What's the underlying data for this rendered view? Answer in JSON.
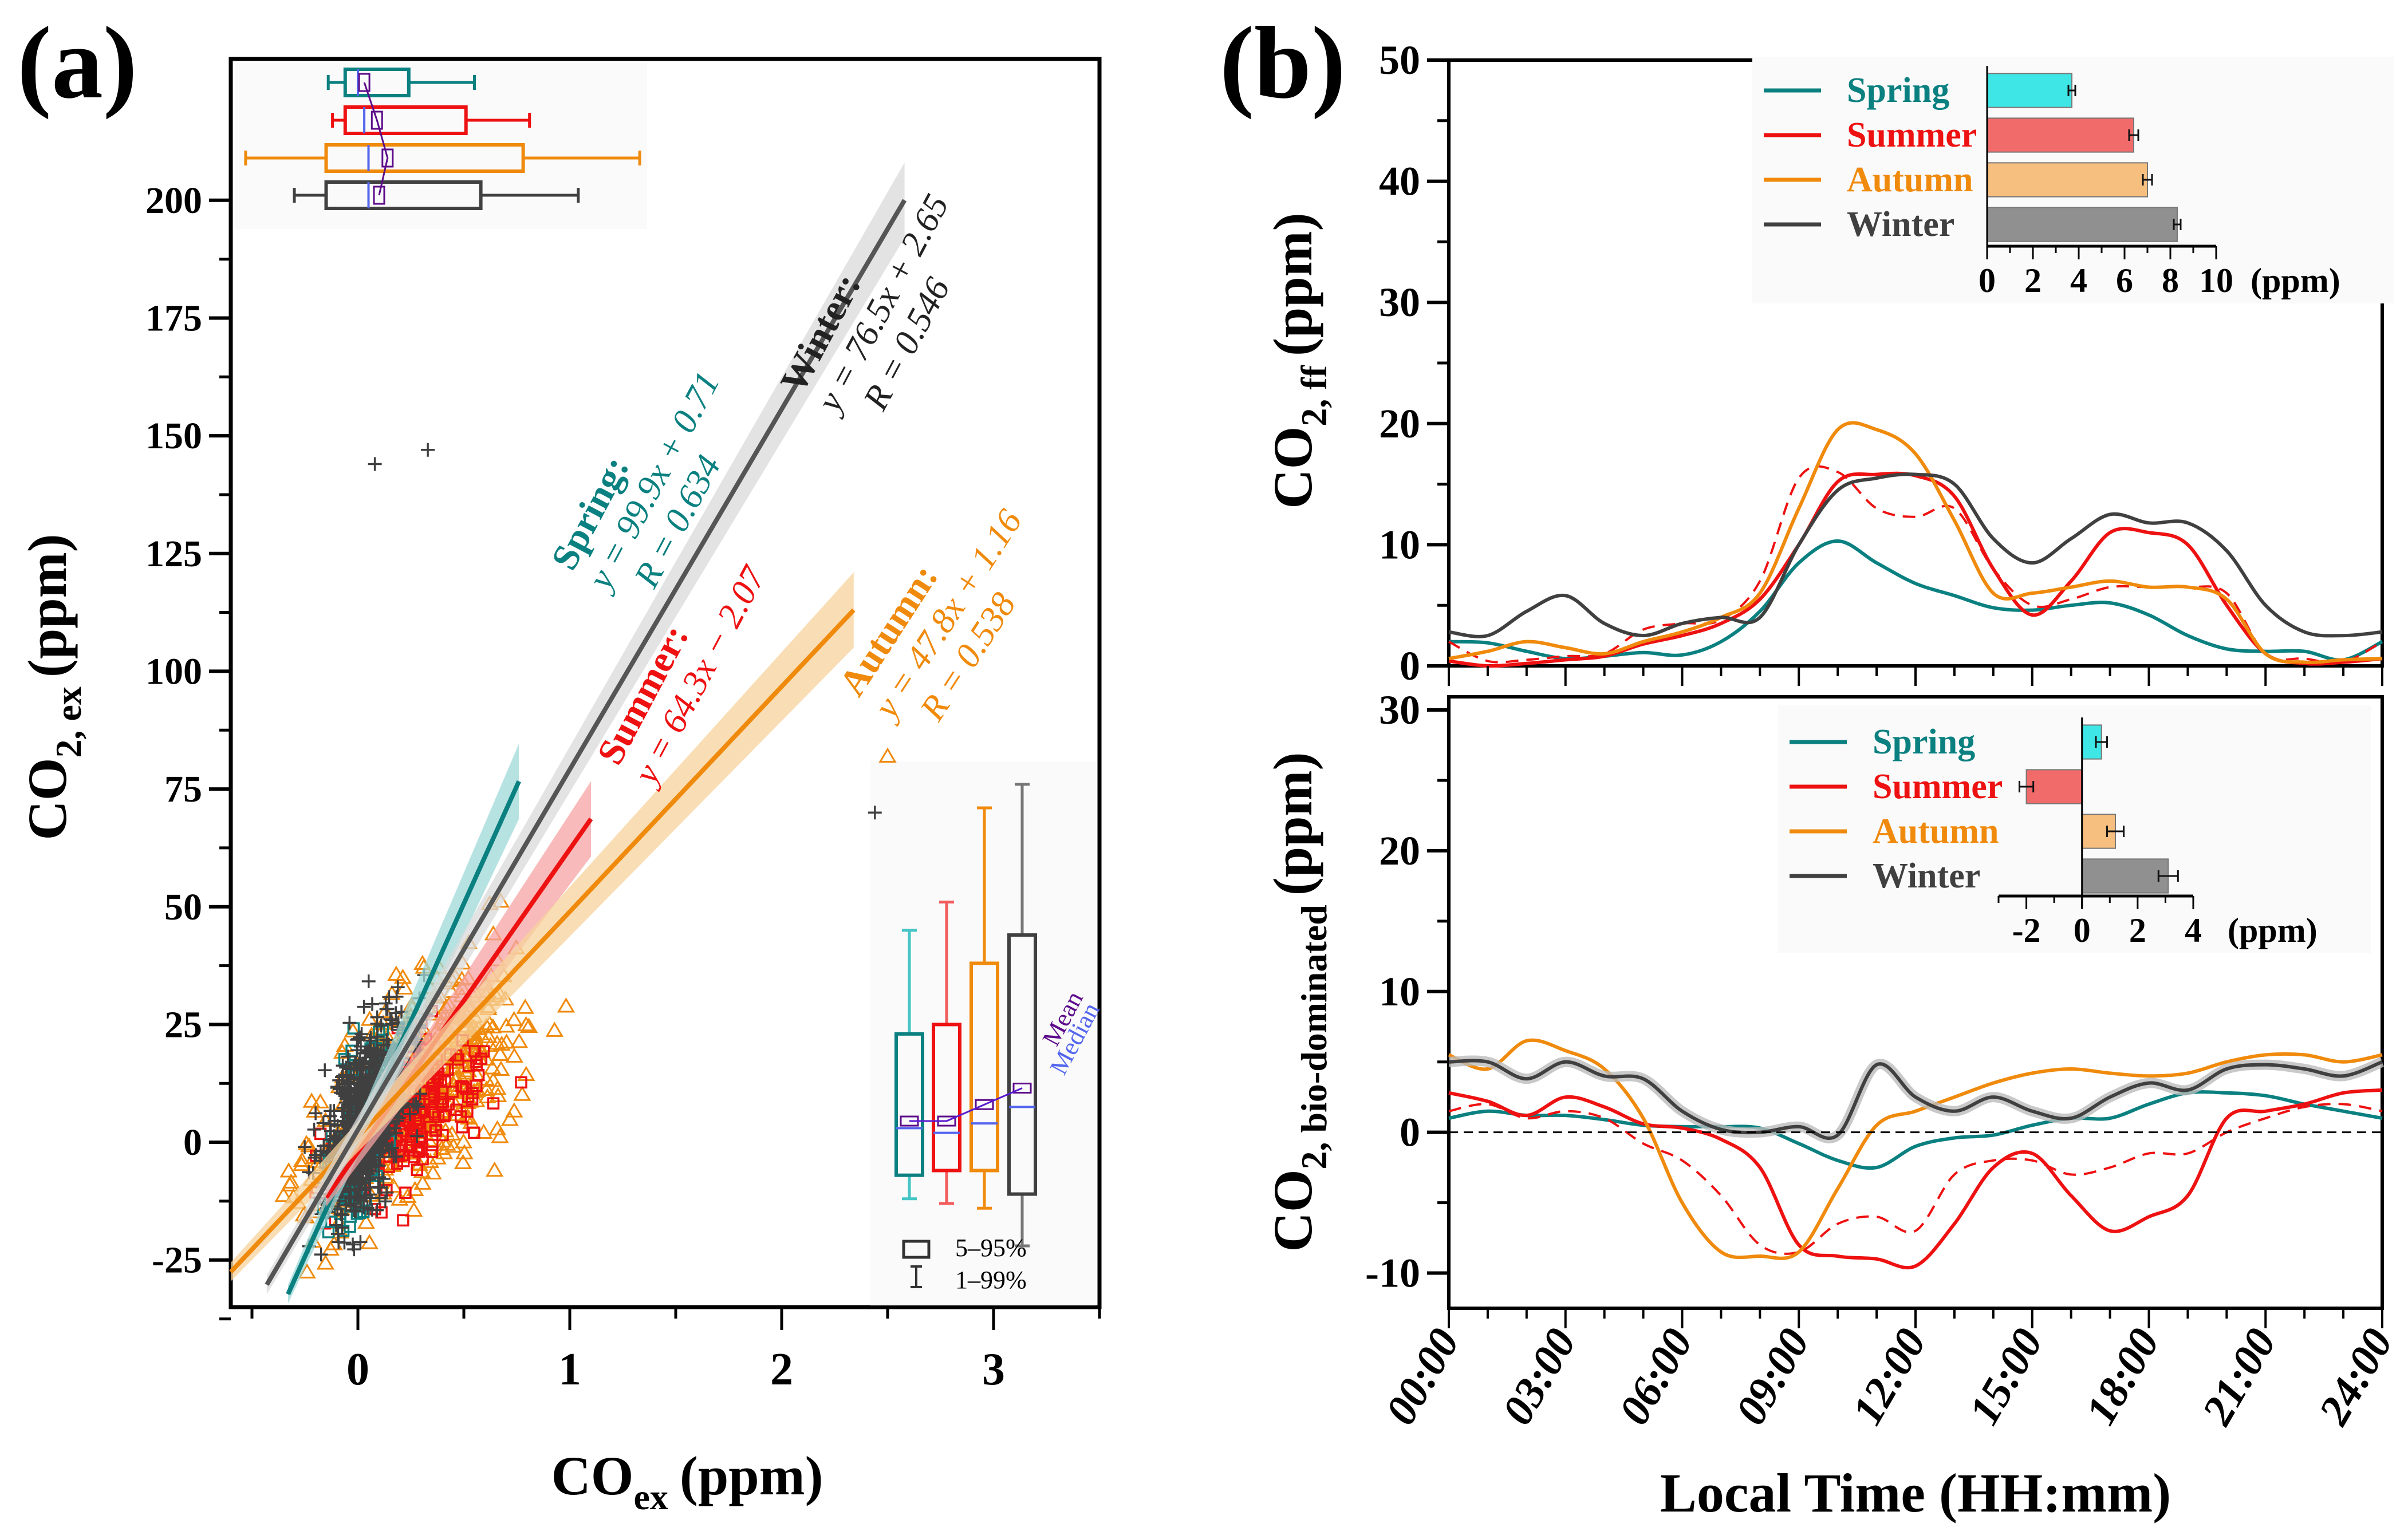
{
  "panel_labels": {
    "a": "(a)",
    "b": "(b)"
  },
  "colors": {
    "Spring": "#0b8080",
    "Summer": "#ee1111",
    "Autumn": "#f08a0c",
    "Winter": "#404040",
    "mean": "#5c0a8a",
    "median": "#5566ee",
    "spring_bar": "#3ee6e6",
    "summer_bar": "#f26b6b",
    "autumn_bar": "#f6bf7f",
    "winter_bar": "#909090"
  },
  "chart_data": [
    {
      "id": "a",
      "type": "scatter",
      "title": "",
      "xlabel": "CO",
      "xlabel_sub": "ex",
      "xlabel_unit": "(ppm)",
      "ylabel": "CO",
      "ylabel_sub": "2, ex",
      "ylabel_unit": "(ppm)",
      "xlim": [
        -0.6,
        3.5
      ],
      "ylim": [
        -35,
        230
      ],
      "xticks": [
        0,
        1,
        2,
        3
      ],
      "xtick_labels": [
        "0",
        "1",
        "2",
        "3"
      ],
      "yticks": [
        -25,
        0,
        25,
        50,
        75,
        100,
        125,
        150,
        175,
        200
      ],
      "ytick_labels": [
        "-25",
        "0",
        "25",
        "50",
        "75",
        "100",
        "125",
        "150",
        "175",
        "200"
      ],
      "markers": {
        "Spring": "square",
        "Summer": "square",
        "Autumn": "triangle",
        "Winter": "plus"
      },
      "regressions": [
        {
          "season": "Spring",
          "title": "Spring:",
          "equation": "y = 99.9x + 0.71",
          "r_text": "R = 0.634",
          "slope": 99.9,
          "intercept": 0.71,
          "x_range": [
            -0.33,
            0.76
          ]
        },
        {
          "season": "Summer",
          "title": "Summer:",
          "equation": "y = 64.3x − 2.07",
          "r_text": "",
          "slope": 64.3,
          "intercept": -2.07,
          "x_range": [
            -0.15,
            1.1
          ]
        },
        {
          "season": "Autumn",
          "title": "Autumn:",
          "equation": "y = 47.8x + 1.16",
          "r_text": "R = 0.538",
          "slope": 47.8,
          "intercept": 1.16,
          "x_range": [
            -0.6,
            2.34
          ]
        },
        {
          "season": "Winter",
          "title": "Winter:",
          "equation": "y = 76.5x + 2.65",
          "r_text": "R = 0.546",
          "slope": 76.5,
          "intercept": 2.65,
          "x_range": [
            -0.43,
            2.58
          ]
        }
      ],
      "co_boxplot": {
        "description": "horizontal boxplots of CO_ex per season (top inset)",
        "order": [
          "Spring",
          "Summer",
          "Autumn",
          "Winter"
        ],
        "stats": [
          {
            "season": "Spring",
            "p1": -0.14,
            "q1": -0.06,
            "median": 0.0,
            "mean": 0.03,
            "q3": 0.24,
            "p99": 0.55
          },
          {
            "season": "Summer",
            "p1": -0.12,
            "q1": -0.06,
            "median": 0.03,
            "mean": 0.09,
            "q3": 0.51,
            "p99": 0.81
          },
          {
            "season": "Autumn",
            "p1": -0.53,
            "q1": -0.15,
            "median": 0.05,
            "mean": 0.14,
            "q3": 0.78,
            "p99": 1.33
          },
          {
            "season": "Winter",
            "p1": -0.3,
            "q1": -0.15,
            "median": 0.05,
            "mean": 0.1,
            "q3": 0.58,
            "p99": 1.04
          }
        ]
      },
      "co2_boxplot": {
        "description": "vertical boxplots of CO2_ex per season (bottom-right inset)",
        "stats": [
          {
            "season": "Spring",
            "p1": -12,
            "q1": -7,
            "median": 3,
            "mean": 4.5,
            "q3": 23,
            "p99": 45
          },
          {
            "season": "Summer",
            "p1": -13,
            "q1": -6,
            "median": 2,
            "mean": 4.5,
            "q3": 25,
            "p99": 51
          },
          {
            "season": "Autumn",
            "p1": -14,
            "q1": -6,
            "median": 4,
            "mean": 8,
            "q3": 38,
            "p99": 71
          },
          {
            "season": "Winter",
            "p1": -22,
            "q1": -11,
            "median": 7.5,
            "mean": 11.5,
            "q3": 44,
            "p99": 76
          }
        ],
        "labels": {
          "mean": "Mean",
          "median": "Median",
          "box": "5–95%",
          "whisker": "1–99%"
        }
      },
      "outliers_noted": [
        {
          "season": "Winter",
          "x": 0.08,
          "y": 144
        },
        {
          "season": "Winter",
          "x": 0.33,
          "y": 147
        },
        {
          "season": "Autumn",
          "x": 2.5,
          "y": 82
        },
        {
          "season": "Winter",
          "x": 2.44,
          "y": 70
        }
      ]
    },
    {
      "id": "b-top",
      "type": "line",
      "ylabel": "CO",
      "ylabel_sub": "2, ff",
      "ylabel_unit": "(ppm)",
      "ylim": [
        0,
        50
      ],
      "yticks": [
        0,
        10,
        20,
        30,
        40,
        50
      ],
      "ytick_labels": [
        "0",
        "10",
        "20",
        "30",
        "40",
        "50"
      ],
      "x": [
        0,
        1,
        2,
        3,
        4,
        5,
        6,
        7,
        8,
        9,
        10,
        11,
        12,
        13,
        14,
        15,
        16,
        17,
        18,
        19,
        20,
        21,
        22,
        23,
        24
      ],
      "series": [
        {
          "name": "Spring",
          "values": [
            2.0,
            1.9,
            1.2,
            0.6,
            0.8,
            1.1,
            0.9,
            2.0,
            4.5,
            8.5,
            10.3,
            8.5,
            6.8,
            5.8,
            4.8,
            4.6,
            5.0,
            5.2,
            4.2,
            2.5,
            1.4,
            1.2,
            1.2,
            0.5,
            2.0
          ]
        },
        {
          "name": "Summer",
          "values": [
            0.4,
            0.0,
            0.2,
            0.5,
            0.8,
            1.8,
            2.5,
            3.5,
            5.5,
            10.0,
            15.2,
            15.8,
            15.7,
            14.0,
            8.0,
            4.2,
            7.0,
            11.0,
            11.0,
            10.0,
            5.0,
            1.0,
            0.2,
            0.3,
            0.6
          ]
        },
        {
          "name": "Summer (dashed)",
          "dashed": true,
          "values": [
            2.0,
            0.4,
            0.5,
            0.8,
            1.0,
            3.0,
            3.5,
            3.8,
            7.0,
            15.5,
            16.0,
            13.0,
            12.3,
            13.0,
            8.0,
            5.0,
            5.5,
            6.5,
            6.5,
            6.5,
            6.0,
            1.0,
            0.6,
            0.3,
            2.0
          ]
        },
        {
          "name": "Autumn",
          "values": [
            0.6,
            1.2,
            2.0,
            1.5,
            1.0,
            2.0,
            2.8,
            4.0,
            6.0,
            13.0,
            19.5,
            19.5,
            17.5,
            12.0,
            6.0,
            6.0,
            6.5,
            7.0,
            6.5,
            6.5,
            5.5,
            1.0,
            0.3,
            0.5,
            0.6
          ]
        },
        {
          "name": "Winter",
          "values": [
            2.8,
            2.5,
            4.5,
            5.8,
            3.5,
            2.5,
            3.5,
            4.0,
            4.0,
            10.0,
            14.5,
            15.5,
            15.8,
            15.0,
            10.5,
            8.5,
            10.5,
            12.5,
            11.8,
            11.8,
            9.5,
            5.0,
            2.8,
            2.5,
            2.8
          ]
        }
      ],
      "inset": {
        "type": "bar",
        "orientation": "horizontal",
        "categories": [
          "Spring",
          "Summer",
          "Autumn",
          "Winter"
        ],
        "values": [
          3.7,
          6.4,
          7.0,
          8.3
        ],
        "errors": [
          0.15,
          0.2,
          0.2,
          0.15
        ],
        "xlim": [
          0,
          10
        ],
        "xticks": [
          0,
          2,
          4,
          6,
          8,
          10
        ],
        "xtick_labels": [
          "0",
          "2",
          "4",
          "6",
          "8",
          "10"
        ],
        "unit": "(ppm)"
      }
    },
    {
      "id": "b-bottom",
      "type": "line",
      "ylabel": "CO",
      "ylabel_sub": "2, bio-dominated",
      "ylabel_unit": "(ppm)",
      "xlabel": "Local Time (HH:mm)",
      "ylim": [
        -12.5,
        30
      ],
      "yticks": [
        -10,
        0,
        10,
        20,
        30
      ],
      "ytick_labels": [
        "-10",
        "0",
        "10",
        "20",
        "30"
      ],
      "xticks": [
        0,
        3,
        6,
        9,
        12,
        15,
        18,
        21,
        24
      ],
      "xtick_labels": [
        "00:00",
        "03:00",
        "06:00",
        "09:00",
        "12:00",
        "15:00",
        "18:00",
        "21:00",
        "24:00"
      ],
      "reference_line": 0,
      "x": [
        0,
        1,
        2,
        3,
        4,
        5,
        6,
        7,
        8,
        9,
        10,
        11,
        12,
        13,
        14,
        15,
        16,
        17,
        18,
        19,
        20,
        21,
        22,
        23,
        24
      ],
      "series": [
        {
          "name": "Spring",
          "values": [
            1.0,
            1.5,
            1.2,
            1.2,
            0.9,
            0.5,
            0.4,
            0.4,
            0.3,
            -0.8,
            -2.0,
            -2.5,
            -1.0,
            -0.4,
            -0.2,
            0.5,
            1.0,
            1.0,
            2.0,
            2.8,
            2.8,
            2.6,
            2.0,
            1.5,
            1.0
          ]
        },
        {
          "name": "Summer",
          "values": [
            2.8,
            2.2,
            1.2,
            2.5,
            1.8,
            0.6,
            0.3,
            -0.5,
            -2.5,
            -8.0,
            -8.8,
            -9.0,
            -9.5,
            -6.5,
            -2.5,
            -1.5,
            -4.5,
            -7.0,
            -6.0,
            -4.5,
            1.0,
            1.5,
            2.0,
            2.8,
            3.0
          ]
        },
        {
          "name": "Summer (dashed)",
          "dashed": true,
          "values": [
            1.5,
            2.0,
            1.0,
            1.5,
            1.0,
            -0.8,
            -2.0,
            -4.5,
            -8.0,
            -8.5,
            -6.5,
            -6.0,
            -7.0,
            -3.0,
            -2.0,
            -2.0,
            -3.0,
            -2.5,
            -1.5,
            -1.5,
            0.0,
            1.0,
            1.8,
            2.0,
            1.5
          ]
        },
        {
          "name": "Autumn",
          "values": [
            5.5,
            4.5,
            6.5,
            5.8,
            4.5,
            1.0,
            -5.0,
            -8.5,
            -8.8,
            -8.5,
            -4.0,
            0.5,
            1.5,
            2.5,
            3.5,
            4.2,
            4.5,
            4.2,
            4.0,
            4.2,
            5.0,
            5.5,
            5.5,
            5.0,
            5.5
          ]
        },
        {
          "name": "Winter",
          "values": [
            5.0,
            5.0,
            3.8,
            5.0,
            4.0,
            3.8,
            1.5,
            0.2,
            0.0,
            0.4,
            -0.2,
            4.8,
            2.5,
            1.5,
            2.5,
            1.5,
            1.0,
            2.5,
            3.5,
            3.0,
            4.5,
            4.8,
            4.5,
            4.0,
            5.0
          ]
        }
      ],
      "inset": {
        "type": "bar",
        "orientation": "horizontal",
        "categories": [
          "Spring",
          "Summer",
          "Autumn",
          "Winter"
        ],
        "values": [
          0.7,
          -2.0,
          1.2,
          3.1
        ],
        "errors": [
          0.2,
          0.25,
          0.3,
          0.35
        ],
        "xlim": [
          -3,
          4
        ],
        "xticks": [
          -2,
          0,
          2,
          4
        ],
        "xtick_labels": [
          "-2",
          "0",
          "2",
          "4"
        ],
        "unit": "(ppm)"
      }
    }
  ],
  "legend": {
    "entries": [
      "Spring",
      "Summer",
      "Autumn",
      "Winter"
    ]
  }
}
